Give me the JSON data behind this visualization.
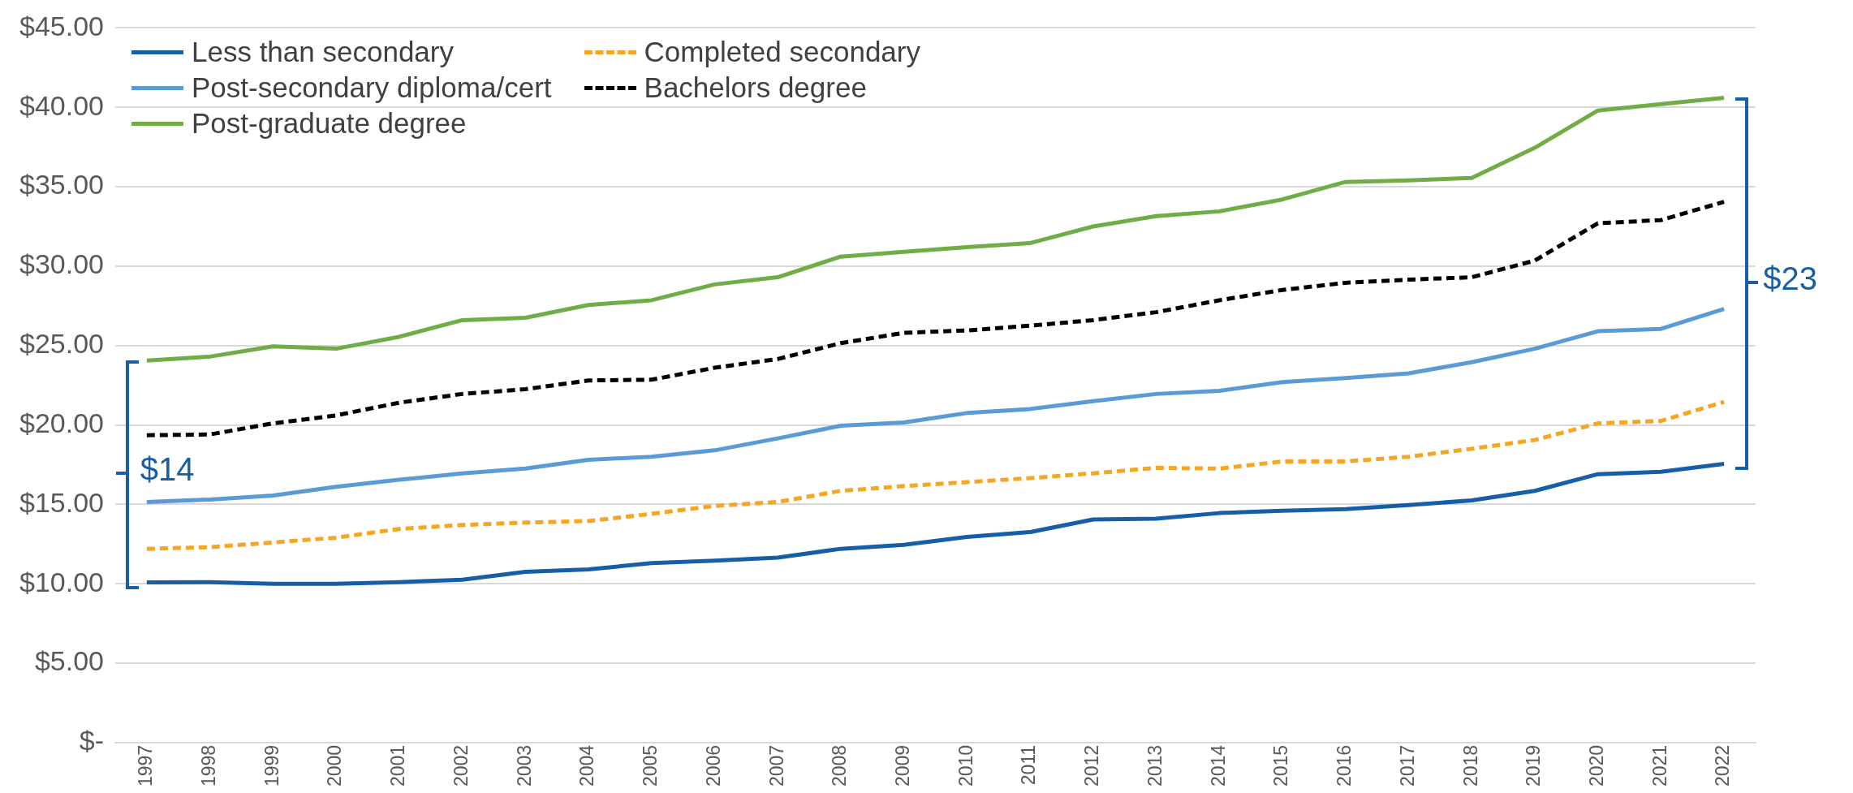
{
  "chart_data": {
    "type": "line",
    "categories": [
      "1997",
      "1998",
      "1999",
      "2000",
      "2001",
      "2002",
      "2003",
      "2004",
      "2005",
      "2006",
      "2007",
      "2008",
      "2009",
      "2010",
      "2011",
      "2012",
      "2013",
      "2014",
      "2015",
      "2016",
      "2017",
      "2018",
      "2019",
      "2020",
      "2021",
      "2022"
    ],
    "series": [
      {
        "name": "Less than secondary",
        "color": "#165ea8",
        "line_style": "solid",
        "values": [
          10.08,
          10.1,
          10.0,
          10.0,
          10.1,
          10.25,
          10.75,
          10.9,
          11.3,
          11.45,
          11.65,
          12.2,
          12.45,
          12.95,
          13.25,
          14.05,
          14.1,
          14.45,
          14.6,
          14.7,
          14.95,
          15.25,
          15.85,
          16.9,
          17.05,
          17.55
        ]
      },
      {
        "name": "Completed secondary",
        "color": "#f5a623",
        "line_style": "dashed",
        "values": [
          12.2,
          12.3,
          12.6,
          12.9,
          13.45,
          13.7,
          13.85,
          13.95,
          14.4,
          14.9,
          15.15,
          15.85,
          16.15,
          16.4,
          16.65,
          16.95,
          17.3,
          17.25,
          17.7,
          17.7,
          18.0,
          18.5,
          19.05,
          20.1,
          20.25,
          21.45
        ]
      },
      {
        "name": "Post-secondary diploma/cert",
        "color": "#5b9bd5",
        "line_style": "solid",
        "values": [
          15.15,
          15.3,
          15.55,
          16.1,
          16.55,
          16.95,
          17.25,
          17.8,
          18.0,
          18.4,
          19.15,
          19.95,
          20.15,
          20.75,
          21.0,
          21.5,
          21.95,
          22.15,
          22.7,
          22.95,
          23.25,
          23.95,
          24.8,
          25.9,
          26.05,
          27.3
        ]
      },
      {
        "name": "Bachelors degree",
        "color": "#000000",
        "line_style": "dashed",
        "values": [
          19.35,
          19.4,
          20.1,
          20.6,
          21.4,
          21.95,
          22.25,
          22.8,
          22.85,
          23.6,
          24.15,
          25.15,
          25.8,
          25.95,
          26.25,
          26.6,
          27.1,
          27.85,
          28.5,
          28.95,
          29.15,
          29.3,
          30.35,
          32.7,
          32.9,
          34.05
        ]
      },
      {
        "name": "Post-graduate degree",
        "color": "#70ad47",
        "line_style": "solid",
        "values": [
          24.05,
          24.3,
          24.95,
          24.8,
          25.55,
          26.6,
          26.75,
          27.55,
          27.85,
          28.85,
          29.3,
          30.6,
          30.9,
          31.2,
          31.45,
          32.5,
          33.15,
          33.45,
          34.2,
          35.3,
          35.4,
          35.55,
          37.45,
          39.8,
          40.2,
          40.6
        ]
      }
    ],
    "ylim": [
      0,
      45
    ],
    "yticks": [
      {
        "value": 0,
        "label": "$-"
      },
      {
        "value": 5,
        "label": "$5.00"
      },
      {
        "value": 10,
        "label": "$10.00"
      },
      {
        "value": 15,
        "label": "$15.00"
      },
      {
        "value": 20,
        "label": "$20.00"
      },
      {
        "value": 25,
        "label": "$25.00"
      },
      {
        "value": 30,
        "label": "$30.00"
      },
      {
        "value": 35,
        "label": "$35.00"
      },
      {
        "value": 40,
        "label": "$40.00"
      },
      {
        "value": 45,
        "label": "$45.00"
      }
    ],
    "grid": "y",
    "legend": "top left",
    "marker": "none",
    "annotations": [
      "$14",
      "$23"
    ]
  }
}
